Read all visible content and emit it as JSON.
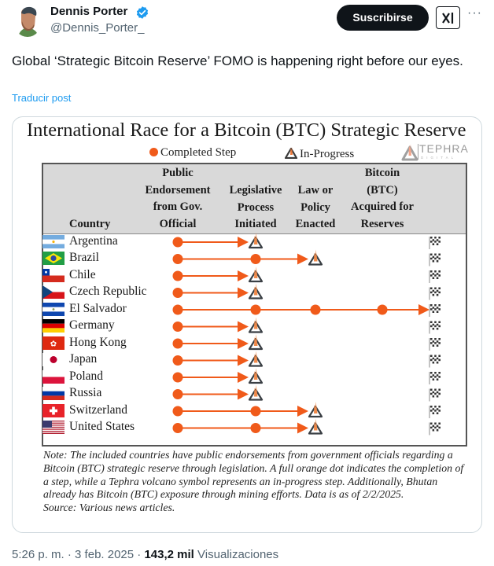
{
  "post": {
    "author_name": "Dennis Porter",
    "author_handle": "@Dennis_Porter_",
    "verified": true,
    "subscribe_label": "Suscribirse",
    "grok_icon": "grok-icon",
    "more_icon": "more-options-icon",
    "text": "Global ‘Strategic Bitcoin Reserve’ FOMO is happening right before our eyes.",
    "translate_label": "Traducir post",
    "time": "5:26 p. m.",
    "separator": "·",
    "date": "3 feb. 2025",
    "views_count": "143,2 mil",
    "views_label": "Visualizaciones"
  },
  "colors": {
    "accent_orange": "#f05a1a",
    "link_blue": "#1d9bf0",
    "verified_blue": "#1d9bf0",
    "header_gray": "#d9d9d9"
  },
  "chart_data": {
    "type": "table",
    "title": "International Race for a Bitcoin (BTC) Strategic Reserve",
    "legend": [
      {
        "label": "Completed Step",
        "symbol": "orange-dot"
      },
      {
        "label": "In-Progress",
        "symbol": "tephra-volcano"
      }
    ],
    "brand": {
      "name": "TEPHRA",
      "sub": "DIGITAL"
    },
    "columns": [
      "Country",
      "Public\nEndorsement\nfrom Gov.\nOfficial",
      "Legislative\nProcess\nInitiated",
      "Law or\nPolicy\nEnacted",
      "Bitcoin\n(BTC)\nAcquired for\nReserves"
    ],
    "status_key": {
      "done": "completed step",
      "progress": "in-progress step",
      "none": "not reached"
    },
    "rows": [
      {
        "country": "Argentina",
        "flag": "argentina",
        "steps": [
          "done",
          "progress",
          "none",
          "none"
        ]
      },
      {
        "country": "Brazil",
        "flag": "brazil",
        "steps": [
          "done",
          "done",
          "progress",
          "none"
        ]
      },
      {
        "country": "Chile",
        "flag": "chile",
        "steps": [
          "done",
          "progress",
          "none",
          "none"
        ]
      },
      {
        "country": "Czech Republic",
        "flag": "czech-republic",
        "steps": [
          "done",
          "progress",
          "none",
          "none"
        ]
      },
      {
        "country": "El Salvador",
        "flag": "el-salvador",
        "steps": [
          "done",
          "done",
          "done",
          "done"
        ]
      },
      {
        "country": "Germany",
        "flag": "germany",
        "steps": [
          "done",
          "progress",
          "none",
          "none"
        ]
      },
      {
        "country": "Hong Kong",
        "flag": "hong-kong",
        "steps": [
          "done",
          "progress",
          "none",
          "none"
        ]
      },
      {
        "country": "Japan",
        "flag": "japan",
        "steps": [
          "done",
          "progress",
          "none",
          "none"
        ]
      },
      {
        "country": "Poland",
        "flag": "poland",
        "steps": [
          "done",
          "progress",
          "none",
          "none"
        ]
      },
      {
        "country": "Russia",
        "flag": "russia",
        "steps": [
          "done",
          "progress",
          "none",
          "none"
        ]
      },
      {
        "country": "Switzerland",
        "flag": "switzerland",
        "steps": [
          "done",
          "done",
          "progress",
          "none"
        ]
      },
      {
        "country": "United States",
        "flag": "united-states",
        "steps": [
          "done",
          "done",
          "progress",
          "none"
        ]
      }
    ],
    "finish_symbol": "checkered-flag",
    "note": "Note: The included countries have public endorsements from government officials regarding a Bitcoin (BTC) strategic reserve through legislation. A full orange dot indicates the completion of a step, while a Tephra volcano symbol represents an in-progress step. Additionally, Bhutan already has Bitcoin (BTC) exposure through mining efforts. Data is as of 2/2/2025.",
    "source": "Source: Various news articles."
  }
}
